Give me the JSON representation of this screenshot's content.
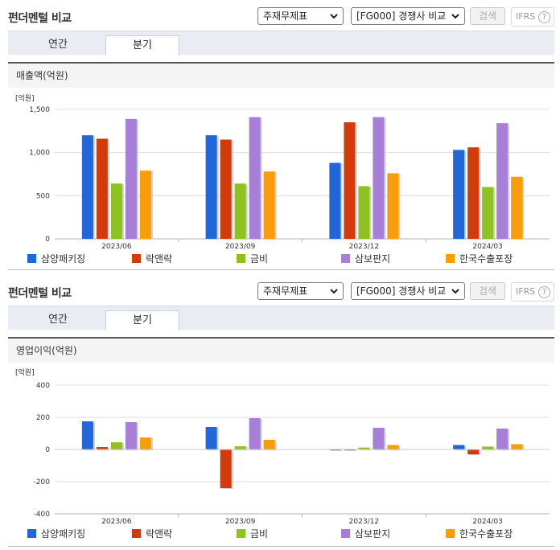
{
  "sections": [
    {
      "title": "펀더멘털 비교",
      "statement_select": "주재무제표",
      "peer_select": "[FG000] 경쟁사 비교",
      "search_label": "검색",
      "ifrs_label": "IFRS",
      "ifrs_help": "?",
      "tabs": [
        "연간",
        "분기"
      ],
      "active_tab": "분기",
      "chart_heading": "매출액(억원)"
    },
    {
      "title": "펀더멘털 비교",
      "statement_select": "주재무제표",
      "peer_select": "[FG000] 경쟁사 비교",
      "search_label": "검색",
      "ifrs_label": "IFRS",
      "ifrs_help": "?",
      "tabs": [
        "연간",
        "분기"
      ],
      "active_tab": "분기",
      "chart_heading": "영업이익(억원)"
    }
  ],
  "chart_data": [
    {
      "type": "bar",
      "unit_label": "[억원]",
      "categories": [
        "2023/06",
        "2023/09",
        "2023/12",
        "2024/03"
      ],
      "ylim": [
        0,
        1500
      ],
      "yticks": [
        "1,500",
        "1,000",
        "500",
        "0"
      ],
      "ytick_values": [
        1500,
        1000,
        500,
        0
      ],
      "grid": true,
      "legend_position": "bottom",
      "series": [
        {
          "name": "삼양패키징",
          "color": "#2167d9",
          "values": [
            1200,
            1200,
            880,
            1030
          ]
        },
        {
          "name": "락앤락",
          "color": "#d23b0b",
          "values": [
            1160,
            1150,
            1350,
            1060
          ]
        },
        {
          "name": "금비",
          "color": "#8dc220",
          "values": [
            640,
            640,
            610,
            600
          ]
        },
        {
          "name": "삼보판지",
          "color": "#a77fd9",
          "values": [
            1390,
            1410,
            1410,
            1340
          ]
        },
        {
          "name": "한국수출포장",
          "color": "#fb9c0a",
          "values": [
            790,
            780,
            760,
            720
          ]
        }
      ]
    },
    {
      "type": "bar",
      "unit_label": "[억원]",
      "categories": [
        "2023/06",
        "2023/09",
        "2023/12",
        "2024/03"
      ],
      "ylim": [
        -400,
        400
      ],
      "yticks": [
        "400",
        "200",
        "0",
        "-200",
        "-400"
      ],
      "ytick_values": [
        400,
        200,
        0,
        -200,
        -400
      ],
      "grid": true,
      "legend_position": "bottom",
      "series": [
        {
          "name": "삼양패키징",
          "color": "#2167d9",
          "values": [
            175,
            140,
            0,
            28
          ]
        },
        {
          "name": "락앤락",
          "color": "#d23b0b",
          "values": [
            15,
            -240,
            -5,
            -30
          ]
        },
        {
          "name": "금비",
          "color": "#8dc220",
          "values": [
            45,
            20,
            12,
            18
          ]
        },
        {
          "name": "삼보판지",
          "color": "#a77fd9",
          "values": [
            170,
            195,
            135,
            130
          ]
        },
        {
          "name": "한국수출포장",
          "color": "#fb9c0a",
          "values": [
            75,
            60,
            28,
            33
          ]
        }
      ]
    }
  ]
}
